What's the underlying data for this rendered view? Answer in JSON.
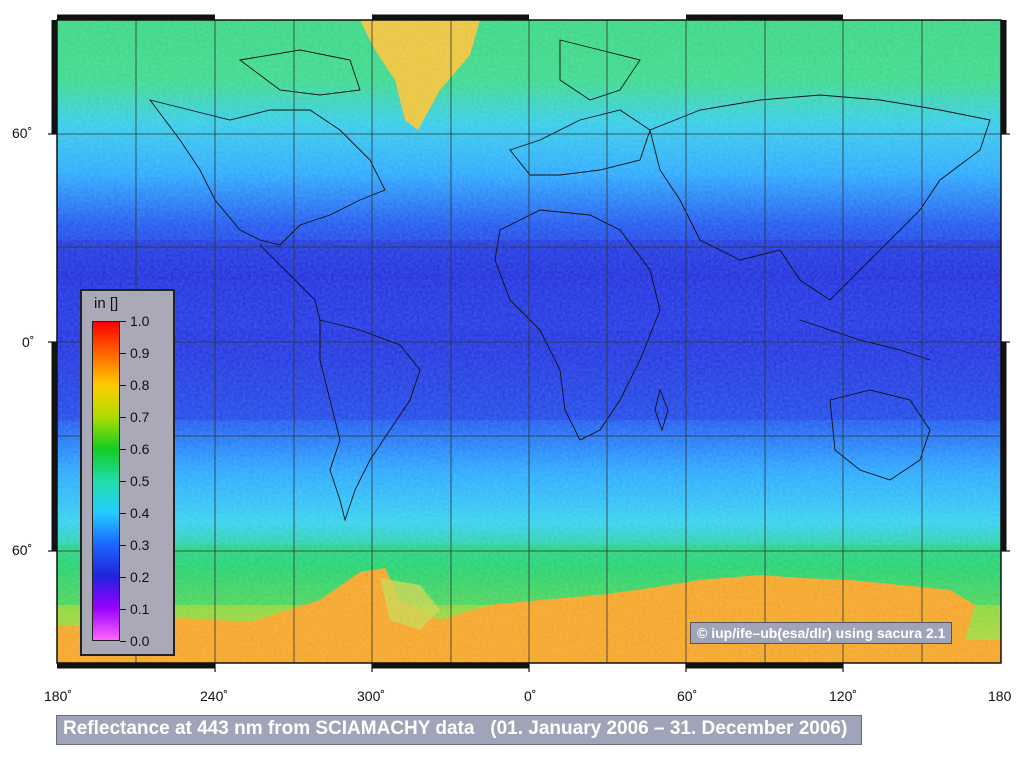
{
  "map": {
    "title": "Reflectance at 443 nm from SCIAMACHY data",
    "period": "(01. January 2006 – 31. December 2006)",
    "copyright": "© iup/ife–ub(esa/dlr) using sacura 2.1",
    "longitude_labels": [
      "180˚",
      "240˚",
      "300˚",
      "0˚",
      "60˚",
      "120˚",
      "180"
    ],
    "latitude_labels": [
      "60˚",
      "0˚",
      "60˚"
    ],
    "colorbar": {
      "unit": "in []",
      "ticks": [
        "1.0",
        "0.9",
        "0.8",
        "0.7",
        "0.6",
        "0.5",
        "0.4",
        "0.3",
        "0.2",
        "0.1",
        "0.0"
      ],
      "min": 0.0,
      "max": 1.0,
      "colors": [
        "#ff66ff",
        "#9900ff",
        "#2222dd",
        "#1a66ff",
        "#22ccff",
        "#22ddaa",
        "#11cc22",
        "#aadd00",
        "#ffcc00",
        "#ff6600",
        "#ff0000"
      ]
    },
    "region_colors": {
      "ocean_tropical": "#1e2fe0",
      "ocean_mid": "#1f8cff",
      "ocean_high": "#33d4ff",
      "southern_band": "#20d070",
      "antarctica": "#f5a424",
      "greenland": "#e9c43a",
      "arctic": "#3ad98a"
    }
  }
}
